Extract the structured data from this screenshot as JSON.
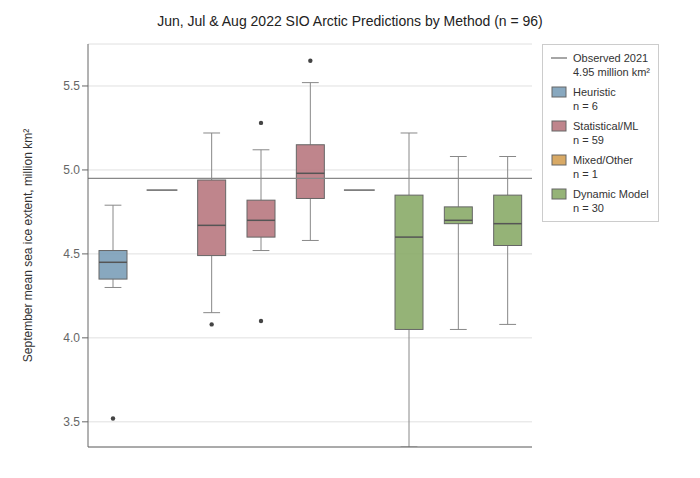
{
  "chart_data": {
    "type": "box",
    "title": "Jun, Jul & Aug 2022 SIO Arctic Predictions by Method (n = 96)",
    "ylabel": "September mean sea ice extent, million km²",
    "ylim": [
      3.35,
      5.75
    ],
    "yticks": [
      {
        "value": 3.5,
        "label": "3.5"
      },
      {
        "value": 4.0,
        "label": "4.0"
      },
      {
        "value": 4.5,
        "label": "4.5"
      },
      {
        "value": 5.0,
        "label": "5.0"
      },
      {
        "value": 5.5,
        "label": "5.5"
      }
    ],
    "grid": true,
    "legend": "upper right",
    "series": [
      {
        "name": "Observed 2021\n4.95 million km²",
        "type": "line",
        "color": "#888888",
        "value": 4.95
      },
      {
        "name": "Heuristic\nn = 6",
        "type": "box",
        "color": "#7b9eb8"
      },
      {
        "name": "Statistical/ML\nn = 59",
        "type": "box",
        "color": "#b87880"
      },
      {
        "name": "Mixed/Other\nn = 1",
        "type": "box",
        "color": "#d4a054"
      },
      {
        "name": "Dynamic Model\nn = 30",
        "type": "box",
        "color": "#8aab68"
      }
    ],
    "categories": [
      null,
      null,
      null,
      null,
      null,
      null,
      null,
      null,
      null
    ],
    "items": [
      {
        "type": "box",
        "color": "#7b9eb8",
        "whislo": 4.3,
        "q1": 4.35,
        "med": 4.45,
        "q3": 4.52,
        "whishi": 4.79,
        "fliers": [
          3.52
        ]
      },
      {
        "type": "line",
        "color": "#666666",
        "value": 4.88
      },
      {
        "type": "box",
        "color": "#b87880",
        "whislo": 4.15,
        "q1": 4.49,
        "med": 4.67,
        "q3": 4.94,
        "whishi": 5.22,
        "fliers": [
          4.08
        ]
      },
      {
        "type": "box",
        "color": "#b87880",
        "whislo": 4.52,
        "q1": 4.6,
        "med": 4.7,
        "q3": 4.82,
        "whishi": 5.12,
        "fliers": [
          4.1,
          5.28
        ]
      },
      {
        "type": "box",
        "color": "#b87880",
        "whislo": 4.58,
        "q1": 4.83,
        "med": 4.98,
        "q3": 5.15,
        "whishi": 5.52,
        "fliers": [
          5.65
        ]
      },
      {
        "type": "line",
        "color": "#666666",
        "value": 4.88
      },
      {
        "type": "box",
        "color": "#8aab68",
        "whislo": 3.35,
        "q1": 4.05,
        "med": 4.6,
        "q3": 4.85,
        "whishi": 5.22,
        "fliers": []
      },
      {
        "type": "box",
        "color": "#8aab68",
        "whislo": 4.05,
        "q1": 4.68,
        "med": 4.7,
        "q3": 4.78,
        "whishi": 5.08,
        "fliers": []
      },
      {
        "type": "box",
        "color": "#8aab68",
        "whislo": 4.08,
        "q1": 4.55,
        "med": 4.68,
        "q3": 4.85,
        "whishi": 5.08,
        "fliers": []
      }
    ]
  }
}
